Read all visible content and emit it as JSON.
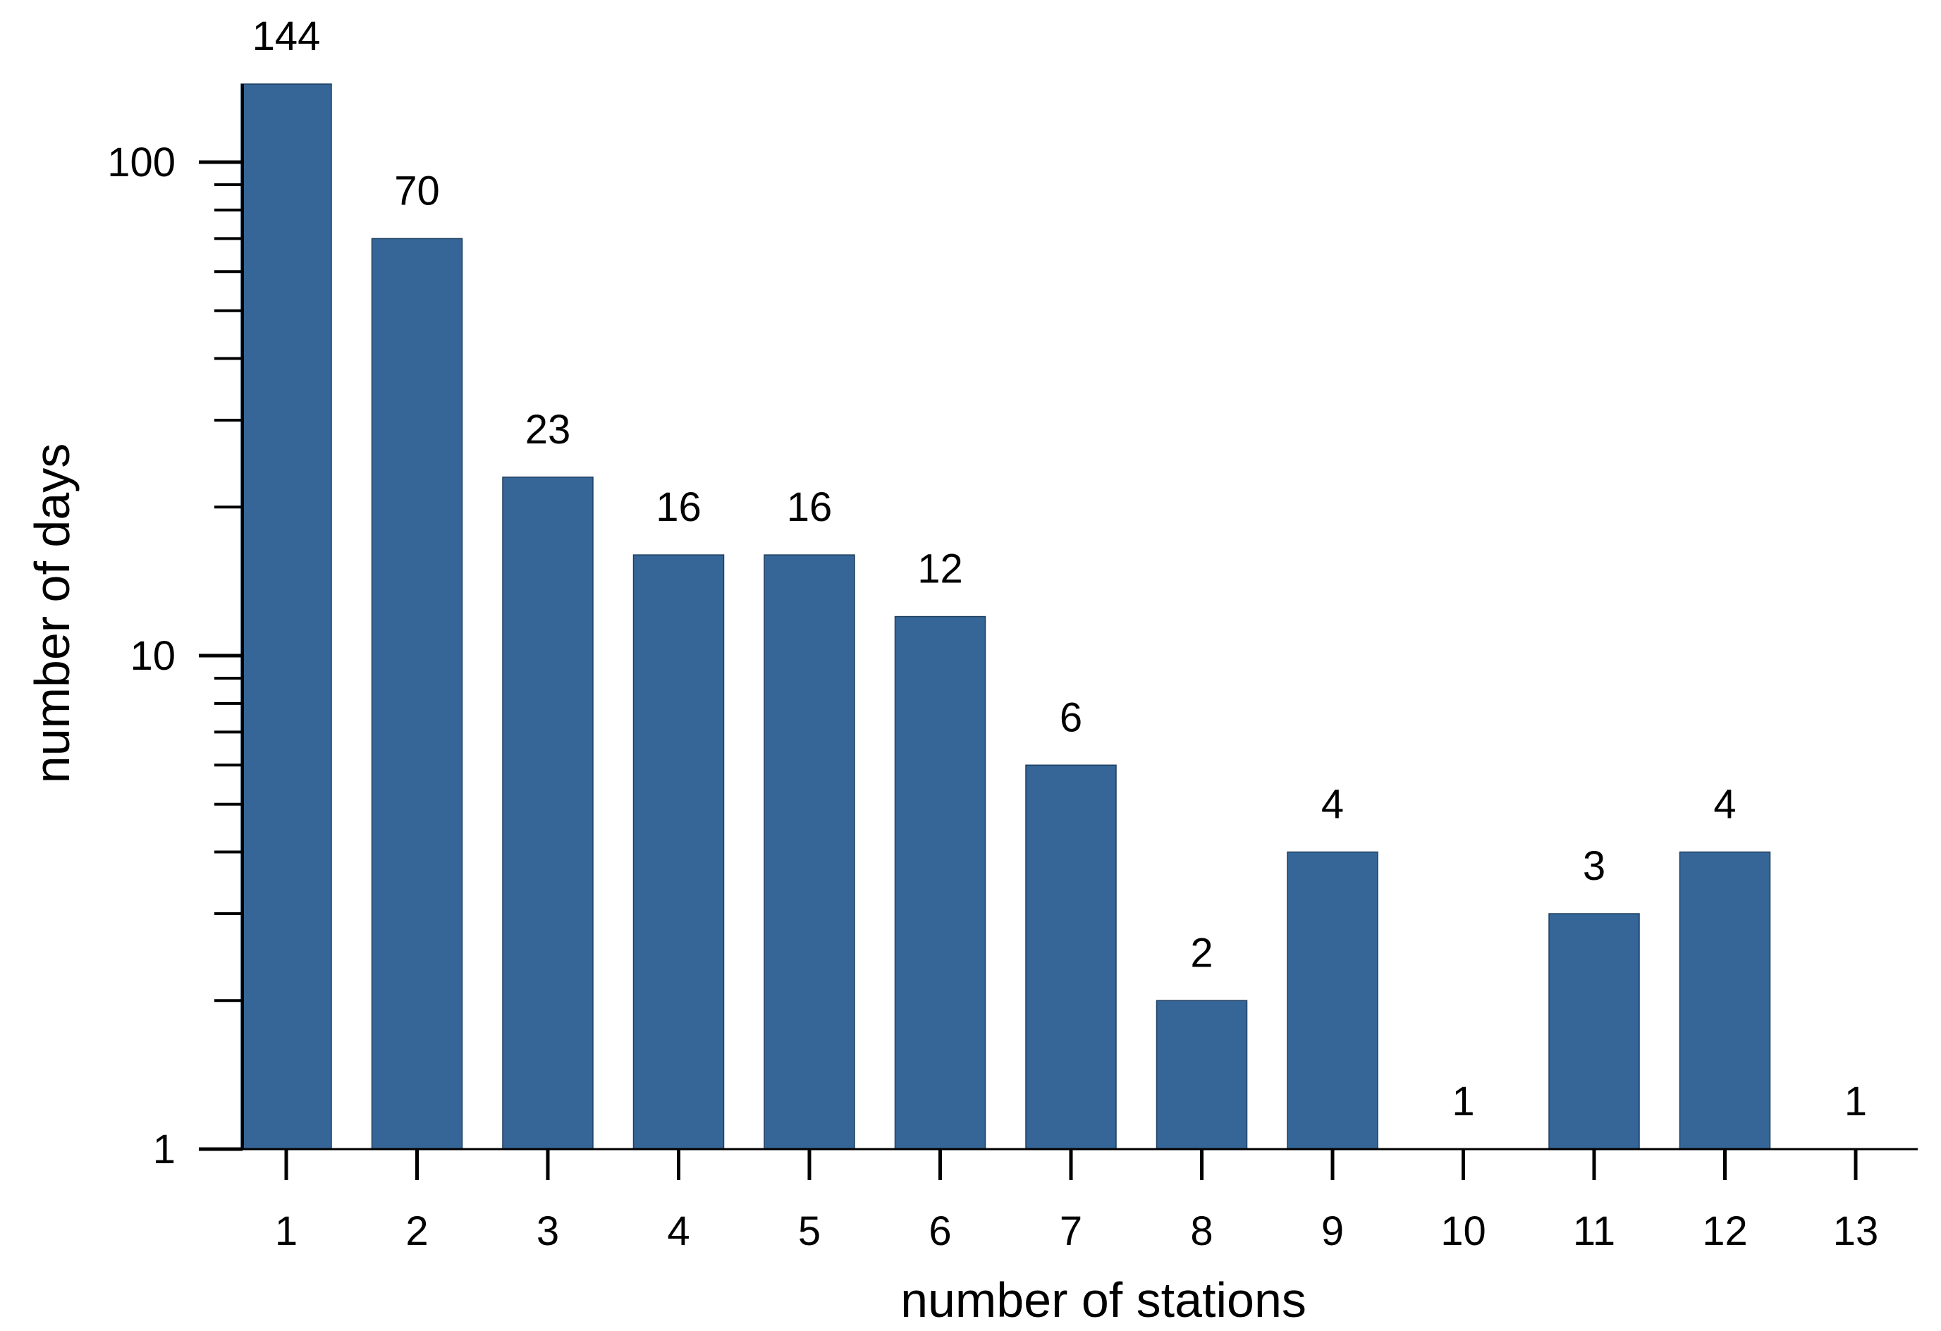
{
  "chart_data": {
    "type": "bar",
    "title": "",
    "xlabel": "number of stations",
    "ylabel": "number of days",
    "y_scale": "log",
    "ylim": [
      1,
      144
    ],
    "y_tick_labels": [
      "1",
      "10",
      "100"
    ],
    "categories": [
      "1",
      "2",
      "3",
      "4",
      "5",
      "6",
      "7",
      "8",
      "9",
      "10",
      "11",
      "12",
      "13"
    ],
    "values": [
      144,
      70,
      23,
      16,
      16,
      12,
      6,
      2,
      4,
      1,
      3,
      4,
      1
    ],
    "data_labels": [
      "144",
      "70",
      "23",
      "16",
      "16",
      "12",
      "6",
      "2",
      "4",
      "1",
      "3",
      "4",
      "1"
    ],
    "grid": false,
    "legend": "none",
    "colors": {
      "bar": "#356697",
      "axis": "#000000",
      "text": "#000000"
    }
  }
}
